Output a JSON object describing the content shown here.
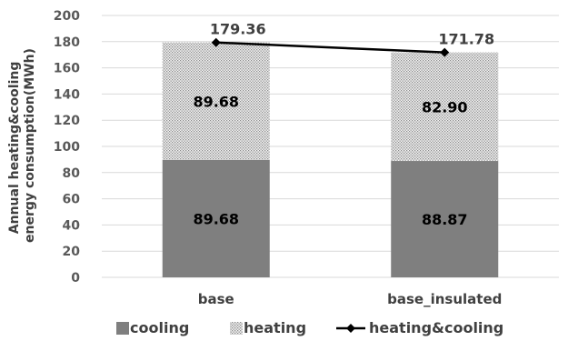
{
  "chart_data": {
    "type": "bar",
    "stacked": true,
    "categories": [
      "base",
      "base_insulated"
    ],
    "series": [
      {
        "name": "cooling",
        "kind": "bar",
        "color": "#7f7f7f",
        "values": [
          89.68,
          88.87
        ],
        "labels": [
          "89.68",
          "88.87"
        ]
      },
      {
        "name": "heating",
        "kind": "bar",
        "pattern": "dotted",
        "color": "#bfbfbf",
        "values": [
          89.68,
          82.9
        ],
        "labels": [
          "89.68",
          "82.90"
        ]
      },
      {
        "name": "heating&cooling",
        "kind": "line",
        "marker": "diamond",
        "color": "#000000",
        "values": [
          179.36,
          171.78
        ],
        "labels": [
          "179.36",
          "171.78"
        ]
      }
    ],
    "ylabel": [
      "Annual heating&cooling",
      "energy consumption(MWh)"
    ],
    "ylim": [
      0,
      200
    ],
    "yticks": [
      0,
      20,
      40,
      60,
      80,
      100,
      120,
      140,
      160,
      180,
      200
    ],
    "grid": true,
    "legend": "bottom"
  }
}
